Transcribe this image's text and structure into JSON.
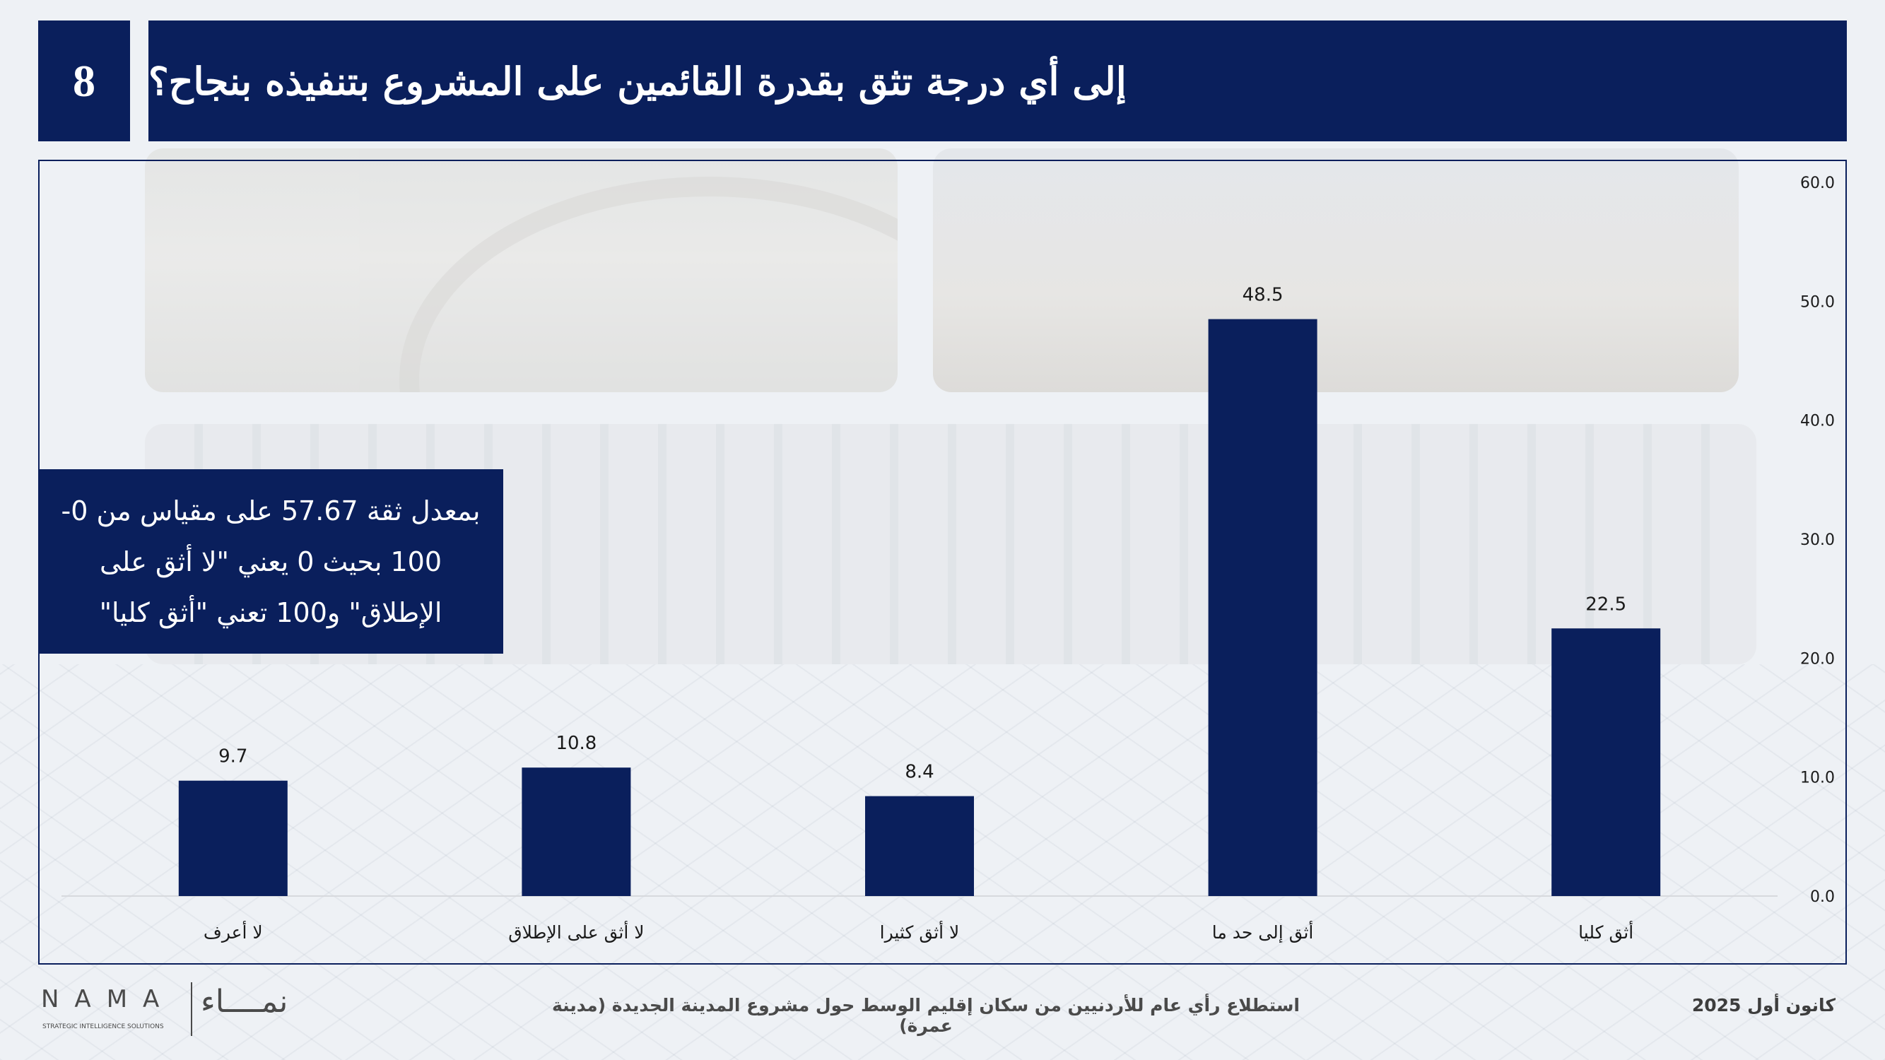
{
  "slide": {
    "number": "8",
    "title": "إلى أي درجة تثق بقدرة القائمين على المشروع بتنفيذه بنجاح؟"
  },
  "callout": {
    "text": "بمعدل ثقة 57.67 على مقياس من 0-100 بحيث 0 يعني \"لا أثق على الإطلاق\" و100 تعني \"أثق كليا\""
  },
  "footer": {
    "date": "كانون أول 2025",
    "caption": "استطلاع رأي عام للأردنيين من سكان إقليم الوسط حول مشروع المدينة الجديدة (مدينة عمرة)",
    "logo_latin": "NAMA",
    "logo_sub": "STRATEGIC INTELLIGENCE SOLUTIONS",
    "logo_arabic": "نمــــاء"
  },
  "colors": {
    "brand_navy": "#0a1f5c",
    "bar": "#0a1f5c"
  },
  "chart_data": {
    "type": "bar",
    "categories": [
      "لا أعرف",
      "لا أثق على الإطلاق",
      "لا أثق كثيرا",
      "أثق إلى حد ما",
      "أثق كليا"
    ],
    "values": [
      9.7,
      10.8,
      8.4,
      48.5,
      22.5
    ],
    "value_labels": [
      "9.7",
      "10.8",
      "8.4",
      "48.5",
      "22.5"
    ],
    "y_ticks": [
      "0.0",
      "10.0",
      "20.0",
      "30.0",
      "40.0",
      "50.0",
      "60.0"
    ],
    "ylim": [
      0,
      60
    ],
    "y_axis_side": "right",
    "grid": false,
    "legend": "none"
  }
}
